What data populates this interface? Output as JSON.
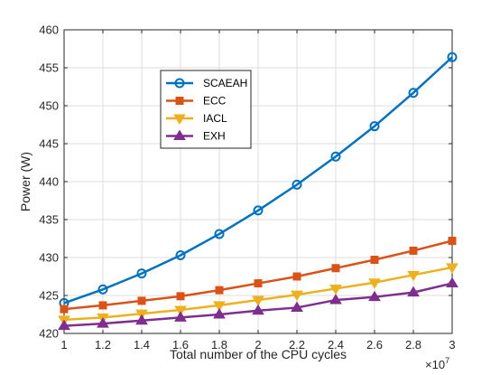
{
  "chart_data": {
    "type": "line",
    "xlabel": "Total number of the CPU cycles",
    "ylabel": "Power (W)",
    "x_exponent_base": "×10",
    "x_exponent_power": "7",
    "x": [
      1,
      1.2,
      1.4,
      1.6,
      1.8,
      2,
      2.2,
      2.4,
      2.6,
      2.8,
      3
    ],
    "x_tick_labels": [
      "1",
      "1.2",
      "1.4",
      "1.6",
      "1.8",
      "2",
      "2.2",
      "2.4",
      "2.6",
      "2.8",
      "3"
    ],
    "y_tick_values": [
      420,
      425,
      430,
      435,
      440,
      445,
      450,
      455,
      460
    ],
    "y_tick_labels": [
      "420",
      "425",
      "430",
      "435",
      "440",
      "445",
      "450",
      "455",
      "460"
    ],
    "xlim": [
      1,
      3
    ],
    "ylim": [
      420,
      460
    ],
    "grid": true,
    "legend_position": "upper-left inside plot",
    "series": [
      {
        "name": "SCAEAH",
        "color": "#0072BD",
        "marker": "circle",
        "values": [
          424.0,
          425.8,
          427.9,
          430.3,
          433.1,
          436.2,
          439.6,
          443.3,
          447.3,
          451.7,
          456.4
        ]
      },
      {
        "name": "ECC",
        "color": "#D95319",
        "marker": "square",
        "values": [
          423.2,
          423.7,
          424.3,
          424.9,
          425.7,
          426.6,
          427.5,
          428.6,
          429.7,
          430.9,
          432.2
        ]
      },
      {
        "name": "IACL",
        "color": "#EDB120",
        "marker": "triangle-down",
        "values": [
          421.8,
          422.1,
          422.6,
          423.1,
          423.7,
          424.4,
          425.1,
          425.9,
          426.7,
          427.7,
          428.7
        ]
      },
      {
        "name": "EXH",
        "color": "#7E2F8E",
        "marker": "triangle-up",
        "values": [
          421.0,
          421.3,
          421.7,
          422.1,
          422.5,
          423.0,
          423.4,
          424.4,
          424.8,
          425.4,
          426.6
        ]
      }
    ]
  }
}
